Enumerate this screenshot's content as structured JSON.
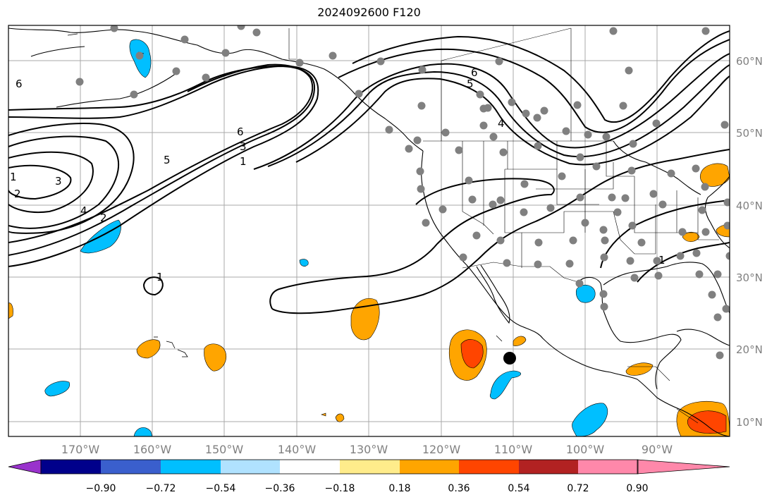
{
  "title": "2024092600 F120",
  "lat_labels": [
    "60°N",
    "50°N",
    "40°N",
    "30°N",
    "20°N",
    "10°N"
  ],
  "lon_labels": [
    "170°W",
    "160°W",
    "150°W",
    "140°W",
    "130°W",
    "120°W",
    "110°W",
    "100°W",
    "90°W"
  ],
  "colorbar": {
    "ticks": [
      "−0.90",
      "−0.72",
      "−0.54",
      "−0.36",
      "−0.18",
      "0.18",
      "0.36",
      "0.54",
      "0.72",
      "0.90"
    ],
    "colors": [
      "#9932cc",
      "#00008b",
      "#3a5fcd",
      "#00bfff",
      "#b0e2ff",
      "#ffffff",
      "#ffec8b",
      "#ffa500",
      "#ff4500",
      "#b22222",
      "#ff88aa"
    ]
  },
  "contour_labels": [
    "6",
    "5",
    "3",
    "1",
    "2",
    "3",
    "4",
    "2",
    "1",
    "1",
    "6",
    "5",
    "4",
    "1"
  ],
  "colors": {
    "positive_orange": "#ffa500",
    "positive_red": "#ff4500",
    "negative_cyan": "#00bfff",
    "station_dot": "#808080",
    "storm_marker": "#000000"
  }
}
